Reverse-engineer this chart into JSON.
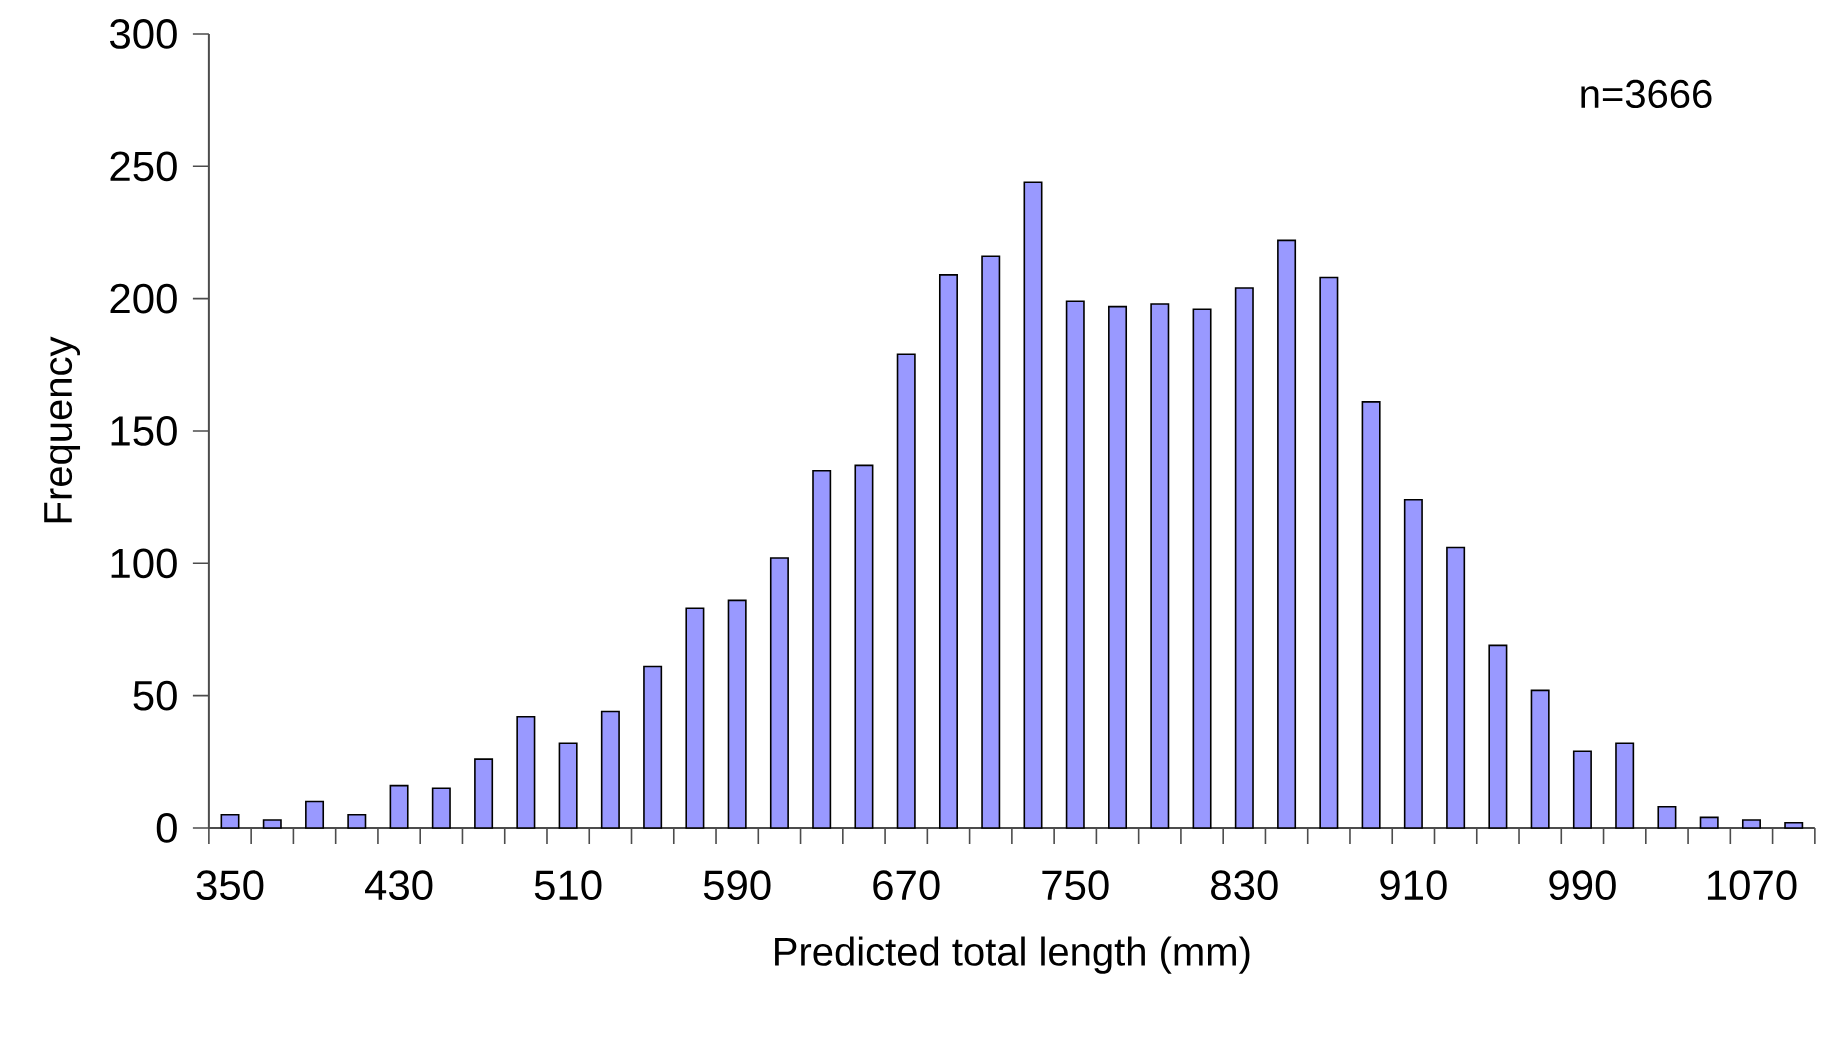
{
  "chart_data": {
    "type": "bar",
    "xlabel": "Predicted total length (mm)",
    "ylabel": "Frequency",
    "categories": [
      "350",
      null,
      null,
      null,
      "430",
      null,
      null,
      null,
      "510",
      null,
      null,
      null,
      "590",
      null,
      null,
      null,
      "670",
      null,
      null,
      null,
      "750",
      null,
      null,
      null,
      "830",
      null,
      null,
      null,
      "910",
      null,
      null,
      null,
      "990",
      null,
      null,
      null,
      "1070",
      null
    ],
    "values": [
      5,
      3,
      10,
      5,
      16,
      15,
      26,
      42,
      32,
      44,
      61,
      83,
      86,
      102,
      135,
      137,
      179,
      209,
      216,
      244,
      199,
      197,
      198,
      196,
      204,
      222,
      208,
      161,
      124,
      106,
      69,
      52,
      29,
      32,
      8,
      4,
      3,
      2
    ],
    "color": "#9999ff",
    "ylim": [
      0,
      300
    ],
    "yticks": [
      0,
      50,
      100,
      150,
      200,
      250,
      300
    ],
    "annotations": [
      "n=3666"
    ]
  }
}
